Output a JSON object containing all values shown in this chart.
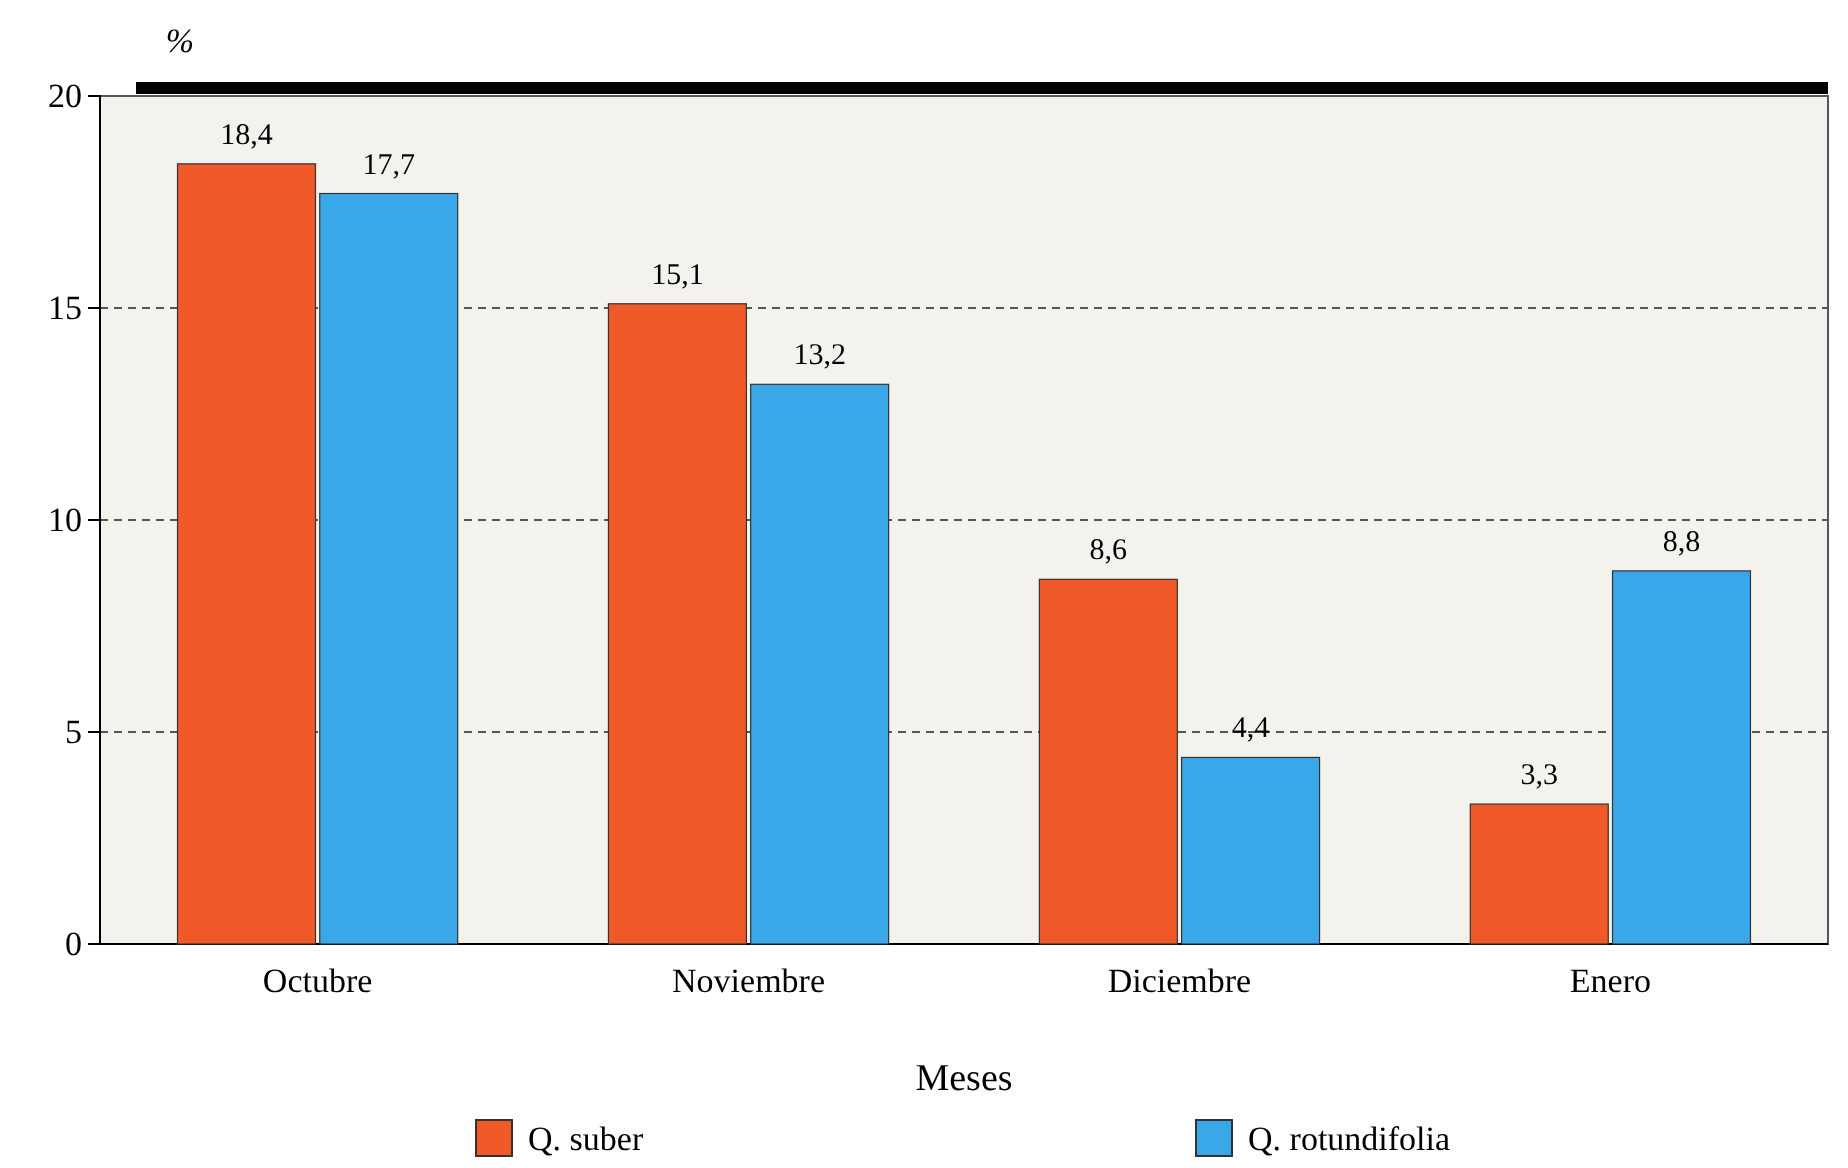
{
  "chart_data": {
    "type": "bar",
    "ylabel": "%",
    "xlabel": "Meses",
    "categories": [
      "Octubre",
      "Noviembre",
      "Diciembre",
      "Enero"
    ],
    "series": [
      {
        "name": "Q. suber",
        "color": "#f05a28",
        "values": [
          18.4,
          15.1,
          8.6,
          3.3
        ],
        "value_labels": [
          "18,4",
          "15,1",
          "8,6",
          "3,3"
        ]
      },
      {
        "name": "Q. rotundifolia",
        "color": "#3aa7e8",
        "values": [
          17.7,
          13.2,
          4.4,
          8.8
        ],
        "value_labels": [
          "17,7",
          "13,2",
          "4,4",
          "8,8"
        ]
      }
    ],
    "ylim": [
      0,
      20
    ],
    "yticks": [
      0,
      5,
      10,
      15,
      20
    ],
    "grid": "y",
    "legend": "bottom"
  }
}
